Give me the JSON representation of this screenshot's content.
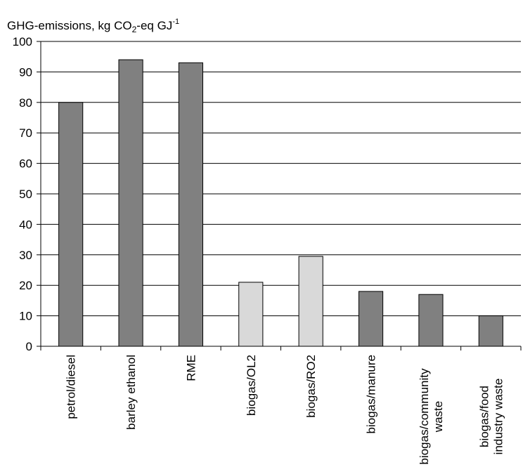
{
  "chart_data": {
    "type": "bar",
    "title": "GHG-emissions, kg CO2-eq GJ-1",
    "title_parts": {
      "pre": "GHG-emissions, kg CO",
      "sub": "2",
      "mid": "-eq GJ",
      "sup": "-1"
    },
    "xlabel": "",
    "ylabel": "",
    "ylim": [
      0,
      100
    ],
    "yticks": [
      0,
      10,
      20,
      30,
      40,
      50,
      60,
      70,
      80,
      90,
      100
    ],
    "grid": true,
    "categories": [
      "petrol/diesel",
      "barley ethanol",
      "RME",
      "biogas/OL2",
      "biogas/RO2",
      "biogas/manure",
      "biogas/community waste",
      "biogas/food industry waste"
    ],
    "category_lines": [
      [
        "petrol/diesel"
      ],
      [
        "barley ethanol"
      ],
      [
        "RME"
      ],
      [
        "biogas/OL2"
      ],
      [
        "biogas/RO2"
      ],
      [
        "biogas/manure"
      ],
      [
        "biogas/community",
        "waste"
      ],
      [
        "biogas/food",
        "industry waste"
      ]
    ],
    "values": [
      80,
      94,
      93,
      21,
      29.5,
      18,
      17,
      10
    ],
    "bar_colors": [
      "#808080",
      "#808080",
      "#808080",
      "#d9d9d9",
      "#d9d9d9",
      "#808080",
      "#808080",
      "#808080"
    ]
  }
}
